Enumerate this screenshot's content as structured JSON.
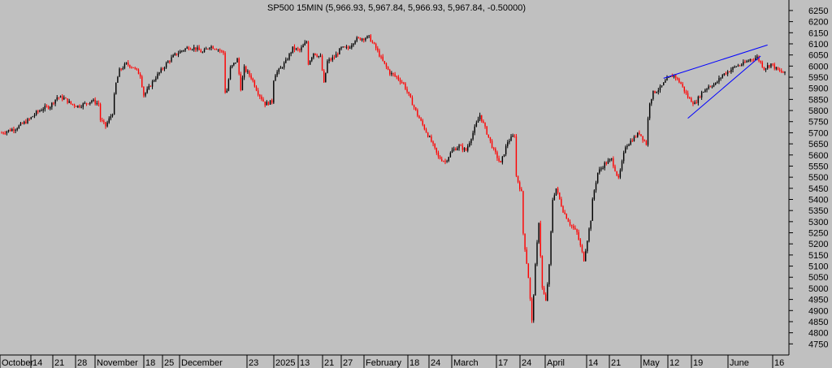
{
  "chart_data": {
    "type": "candlestick",
    "title": "SP500 15MIN (5,966.93, 5,967.84, 5,966.93, 5,967.84, -0.50000)",
    "y_axis": {
      "side": "right",
      "ylim": [
        4700,
        6290
      ],
      "ticks": [
        4750,
        4800,
        4850,
        4900,
        4950,
        5000,
        5050,
        5100,
        5150,
        5200,
        5250,
        5300,
        5350,
        5400,
        5450,
        5500,
        5550,
        5600,
        5650,
        5700,
        5750,
        5800,
        5850,
        5900,
        5950,
        6000,
        6050,
        6100,
        6150,
        6200,
        6250
      ]
    },
    "x_axis": {
      "labels": [
        "October",
        "14",
        "21",
        "28",
        "November",
        "18",
        "25",
        "December",
        "23",
        "2025",
        "13",
        "21",
        "27",
        "February",
        "18",
        "24",
        "March",
        "17",
        "24",
        "April",
        "14",
        "21",
        "May",
        "12",
        "19",
        "June",
        "16"
      ]
    },
    "grid": false,
    "up_color": "#000000",
    "down_color": "#ff0000",
    "price_path": [
      [
        0,
        5700
      ],
      [
        2,
        5720
      ],
      [
        3,
        5740
      ],
      [
        4,
        5760
      ],
      [
        5,
        5790
      ],
      [
        6,
        5810
      ],
      [
        7,
        5820
      ],
      [
        8,
        5860
      ],
      [
        9,
        5855
      ],
      [
        10,
        5830
      ],
      [
        11,
        5820
      ],
      [
        12,
        5830
      ],
      [
        13,
        5845
      ],
      [
        14,
        5830
      ],
      [
        14.2,
        5760
      ],
      [
        15,
        5730
      ],
      [
        16,
        5790
      ],
      [
        16.4,
        5910
      ],
      [
        17,
        5980
      ],
      [
        18,
        6010
      ],
      [
        19,
        5995
      ],
      [
        20,
        5960
      ],
      [
        20.5,
        5870
      ],
      [
        21,
        5890
      ],
      [
        22,
        5940
      ],
      [
        23,
        5980
      ],
      [
        24,
        6020
      ],
      [
        25,
        6050
      ],
      [
        26,
        6070
      ],
      [
        27,
        6085
      ],
      [
        28,
        6080
      ],
      [
        29,
        6060
      ],
      [
        30,
        6090
      ],
      [
        31,
        6080
      ],
      [
        32,
        6060
      ],
      [
        32.3,
        5850
      ],
      [
        33,
        5990
      ],
      [
        34,
        6030
      ],
      [
        34.5,
        5900
      ],
      [
        35,
        5990
      ],
      [
        36,
        5950
      ],
      [
        37,
        5880
      ],
      [
        38,
        5830
      ],
      [
        39,
        5840
      ],
      [
        39.3,
        5960
      ],
      [
        40,
        5980
      ],
      [
        41,
        6020
      ],
      [
        42,
        6080
      ],
      [
        43,
        6070
      ],
      [
        44,
        6110
      ],
      [
        44.2,
        6010
      ],
      [
        45,
        6060
      ],
      [
        46,
        6040
      ],
      [
        46.5,
        5920
      ],
      [
        47,
        6020
      ],
      [
        48,
        6040
      ],
      [
        49,
        6080
      ],
      [
        50,
        6080
      ],
      [
        51,
        6120
      ],
      [
        52,
        6125
      ],
      [
        53,
        6130
      ],
      [
        54,
        6080
      ],
      [
        55,
        6020
      ],
      [
        56,
        5970
      ],
      [
        57,
        5950
      ],
      [
        58,
        5920
      ],
      [
        59,
        5850
      ],
      [
        60,
        5780
      ],
      [
        61,
        5720
      ],
      [
        62,
        5660
      ],
      [
        63,
        5590
      ],
      [
        64,
        5570
      ],
      [
        65,
        5620
      ],
      [
        66,
        5640
      ],
      [
        67,
        5620
      ],
      [
        68,
        5700
      ],
      [
        69,
        5780
      ],
      [
        70,
        5700
      ],
      [
        71,
        5620
      ],
      [
        72,
        5560
      ],
      [
        73,
        5660
      ],
      [
        74,
        5690
      ],
      [
        74.2,
        5510
      ],
      [
        75,
        5430
      ],
      [
        75.2,
        5260
      ],
      [
        76,
        5050
      ],
      [
        76.5,
        4850
      ],
      [
        77,
        5100
      ],
      [
        77.5,
        5300
      ],
      [
        78,
        5000
      ],
      [
        78.5,
        4940
      ],
      [
        79,
        5100
      ],
      [
        79.5,
        5400
      ],
      [
        80,
        5450
      ],
      [
        81,
        5350
      ],
      [
        82,
        5290
      ],
      [
        83,
        5250
      ],
      [
        84,
        5130
      ],
      [
        85,
        5310
      ],
      [
        85.3,
        5410
      ],
      [
        86,
        5520
      ],
      [
        87,
        5560
      ],
      [
        88,
        5580
      ],
      [
        89,
        5490
      ],
      [
        90,
        5640
      ],
      [
        91,
        5670
      ],
      [
        92,
        5700
      ],
      [
        93,
        5650
      ],
      [
        93.4,
        5830
      ],
      [
        94,
        5880
      ],
      [
        95,
        5900
      ],
      [
        96,
        5940
      ],
      [
        97,
        5960
      ],
      [
        98,
        5920
      ],
      [
        99,
        5860
      ],
      [
        100,
        5830
      ],
      [
        101,
        5880
      ],
      [
        102,
        5910
      ],
      [
        103,
        5920
      ],
      [
        104,
        5960
      ],
      [
        105,
        5980
      ],
      [
        106,
        6000
      ],
      [
        107,
        6010
      ],
      [
        108,
        6030
      ],
      [
        109,
        6040
      ],
      [
        110,
        5990
      ],
      [
        111,
        6010
      ],
      [
        112,
        5980
      ],
      [
        113,
        5967
      ]
    ],
    "x_count": 114,
    "trendlines": [
      {
        "from": [
          95.5,
          5945
        ],
        "to": [
          110.5,
          6095
        ],
        "color": "#0000ff"
      },
      {
        "from": [
          99,
          5765
        ],
        "to": [
          109.5,
          6045
        ],
        "color": "#0000ff"
      }
    ]
  }
}
